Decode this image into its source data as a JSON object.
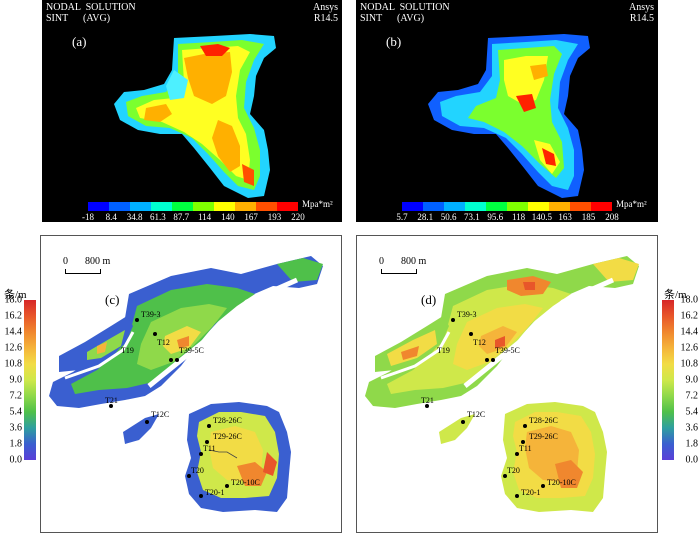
{
  "fem_panels": [
    {
      "header_left_1": "NODAL  SOLUTION",
      "header_left_2": "SINT      (AVG)",
      "header_right_1": "Ansys",
      "header_right_2": "R14.5",
      "label": "(a)",
      "unit": "Mpa*m²",
      "ticks": [
        "-18",
        "8.4",
        "34.8",
        "61.3",
        "87.7",
        "114",
        "140",
        "167",
        "193",
        "220"
      ]
    },
    {
      "header_left_1": "NODAL  SOLUTION",
      "header_left_2": "SINT      (AVG)",
      "header_right_1": "Ansys",
      "header_right_2": "R14.5",
      "label": "(b)",
      "unit": "Mpa*m²",
      "ticks": [
        "5.7",
        "28.1",
        "50.6",
        "73.1",
        "95.6",
        "118",
        "140.5",
        "163",
        "185",
        "208"
      ]
    }
  ],
  "map_panels": [
    {
      "label": "(c)",
      "scale_zero": "0",
      "scale_dist": "800 m",
      "legend_unit": "条/m",
      "legend_ticks": [
        "18.0",
        "16.2",
        "14.4",
        "12.6",
        "10.8",
        "9.0",
        "7.2",
        "5.4",
        "3.6",
        "1.8",
        "0.0"
      ],
      "wells": [
        "T39-3",
        "T19",
        "T12",
        "T39-5C",
        "T21",
        "T12C",
        "T28-26C",
        "T29-26C",
        "T11",
        "T20",
        "T20-10C",
        "T20-1"
      ]
    },
    {
      "label": "(d)",
      "scale_zero": "0",
      "scale_dist": "800 m",
      "legend_unit": "条/m",
      "legend_ticks": [
        "18.0",
        "16.2",
        "14.4",
        "12.6",
        "10.8",
        "9.0",
        "7.2",
        "5.4",
        "3.6",
        "1.8",
        "0.0"
      ],
      "wells": [
        "T39-3",
        "T19",
        "T12",
        "T39-5C",
        "T21",
        "T12C",
        "T28-26C",
        "T29-26C",
        "T11",
        "T20",
        "T20-10C",
        "T20-1"
      ]
    }
  ],
  "colors": {
    "fem_scale": [
      "#0000ff",
      "#0060ff",
      "#00b0ff",
      "#00ffd0",
      "#00ff40",
      "#80ff00",
      "#ffff00",
      "#ffb000",
      "#ff5000",
      "#ff0000"
    ],
    "map_scale": [
      "#d62728",
      "#e8562a",
      "#f0872e",
      "#f5b43a",
      "#f2dc45",
      "#cfe84a",
      "#8fd94a",
      "#4fc04a",
      "#2e9fa0",
      "#3a5fd0",
      "#5a3fd8"
    ]
  }
}
